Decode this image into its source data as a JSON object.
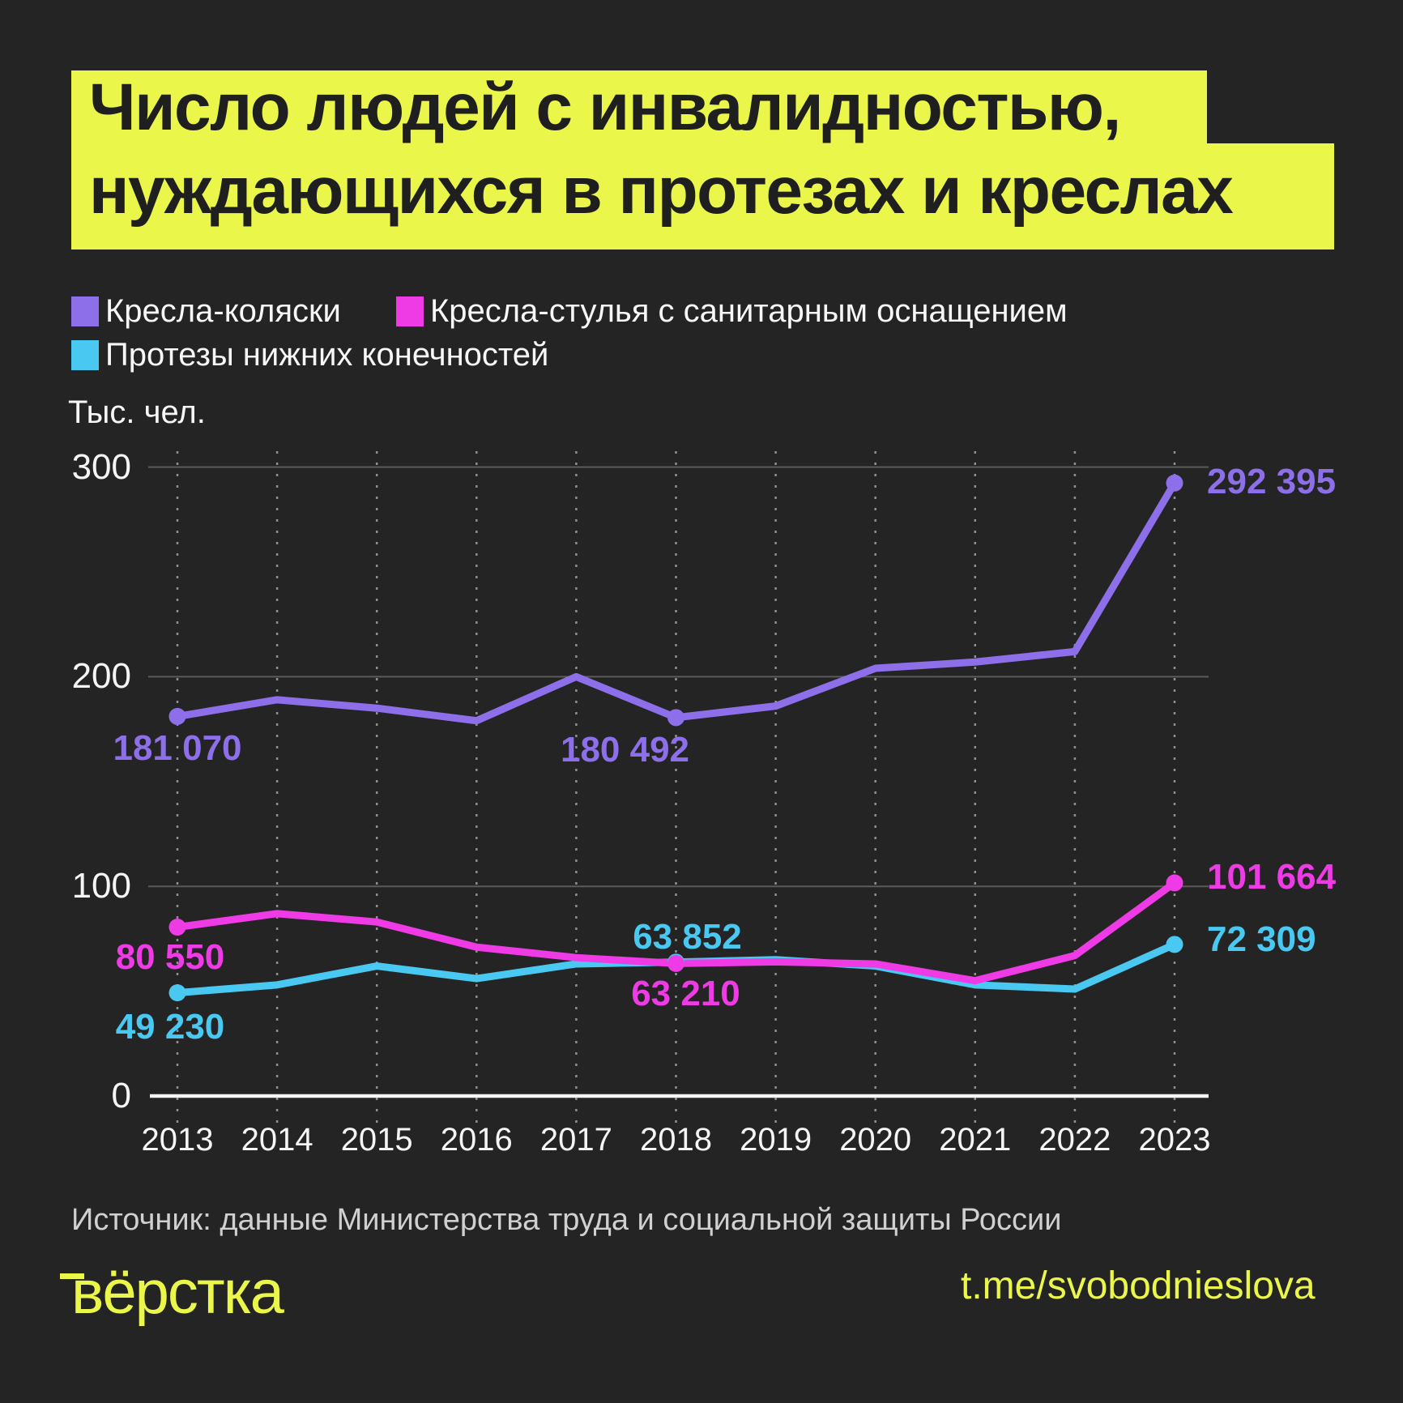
{
  "title": {
    "line1": "Число людей с инвалидностью,",
    "line2": "нуждающихся в протезах и креслах"
  },
  "legend": [
    {
      "label": "Кресла-коляски",
      "color": "#8d6fe9"
    },
    {
      "label": "Кресла-стулья с санитарным оснащением",
      "color": "#ee3be5"
    },
    {
      "label": "Протезы нижних конечностей",
      "color": "#49c8f2"
    }
  ],
  "axis_unit": "Тыс. чел.",
  "chart_data": {
    "type": "line",
    "title": "Число людей с инвалидностью, нуждающихся в протезах и креслах",
    "ylabel": "Тыс. чел.",
    "x": [
      2013,
      2014,
      2015,
      2016,
      2017,
      2018,
      2019,
      2020,
      2021,
      2022,
      2023
    ],
    "ylim": [
      0,
      300
    ],
    "y_ticks": [
      300,
      200,
      100,
      0
    ],
    "grid": "horizontal solid lines + vertical dotted lines per year",
    "legend_position": "top-left",
    "series": [
      {
        "name": "Кресла-коляски",
        "color": "#8d6fe9",
        "values": [
          181.07,
          189,
          185,
          179,
          200,
          180.492,
          186,
          204,
          207,
          212,
          292.395
        ],
        "point_labels": [
          {
            "year": 2013,
            "text": "181 070"
          },
          {
            "year": 2018,
            "text": "180 492"
          },
          {
            "year": 2023,
            "text": "292 395"
          }
        ]
      },
      {
        "name": "Кресла-стулья с санитарным оснащением",
        "color": "#ee3be5",
        "values": [
          80.55,
          87,
          83,
          71,
          66,
          63.21,
          64,
          63,
          55,
          67,
          101.664
        ],
        "point_labels": [
          {
            "year": 2013,
            "text": "80 550"
          },
          {
            "year": 2018,
            "text": "63 210"
          },
          {
            "year": 2023,
            "text": "101 664"
          }
        ]
      },
      {
        "name": "Протезы нижних конечностей",
        "color": "#49c8f2",
        "values": [
          49.23,
          53,
          62,
          56,
          63,
          63.852,
          65,
          62,
          53,
          51,
          72.309
        ],
        "point_labels": [
          {
            "year": 2013,
            "text": "49 230"
          },
          {
            "year": 2018,
            "text": "63 852"
          },
          {
            "year": 2023,
            "text": "72 309"
          }
        ]
      }
    ]
  },
  "source": "Источник: данные Министерства труда и социальной защиты России",
  "footer": {
    "logo": "вёрстка",
    "handle": "t.me/svobodnieslova"
  },
  "colors": {
    "background": "#242424",
    "accent_yellow": "#ebf64b",
    "purple": "#8d6fe9",
    "magenta": "#ee3be5",
    "cyan": "#49c8f2",
    "grid_solid": "#5a5a5a",
    "grid_dotted": "#909090",
    "axis": "#f5f5f5",
    "text_white": "#f7f7f7",
    "text_gray": "#d0d0d0"
  }
}
